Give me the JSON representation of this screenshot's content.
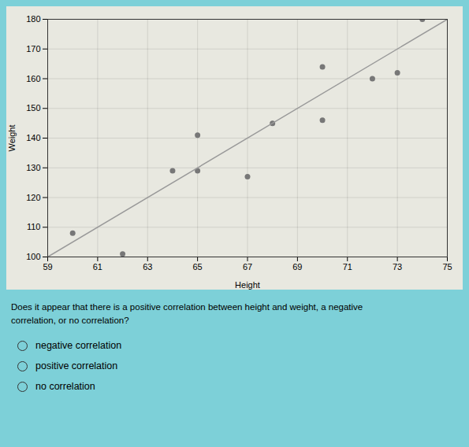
{
  "chart_data": {
    "type": "scatter",
    "xlabel": "Height",
    "ylabel": "Weight",
    "series": [
      {
        "type": "scatter",
        "color": "#777777",
        "marker": "circle",
        "x": [
          60,
          62,
          64,
          65,
          65,
          67,
          68,
          70,
          70,
          72,
          73,
          74
        ],
        "values": [
          108,
          101,
          129,
          129,
          141,
          127,
          145,
          146,
          164,
          160,
          162,
          180
        ]
      },
      {
        "type": "line",
        "color": "#999999",
        "line_style": "solid",
        "x": [
          59,
          75
        ],
        "values": [
          100,
          180
        ]
      }
    ],
    "xlim": [
      59,
      75
    ],
    "ylim": [
      100,
      180
    ],
    "xticks": [
      59,
      61,
      63,
      65,
      67,
      69,
      71,
      73,
      75
    ],
    "yticks": [
      100,
      110,
      120,
      130,
      140,
      150,
      160,
      170,
      180
    ],
    "grid": true,
    "annotations": [
      "Does it appear that there is a positive correlation between height and weight, a negative",
      "correlation, or no correlation?"
    ],
    "options": [
      "negative correlation",
      "positive correlation",
      "no correlation"
    ]
  }
}
